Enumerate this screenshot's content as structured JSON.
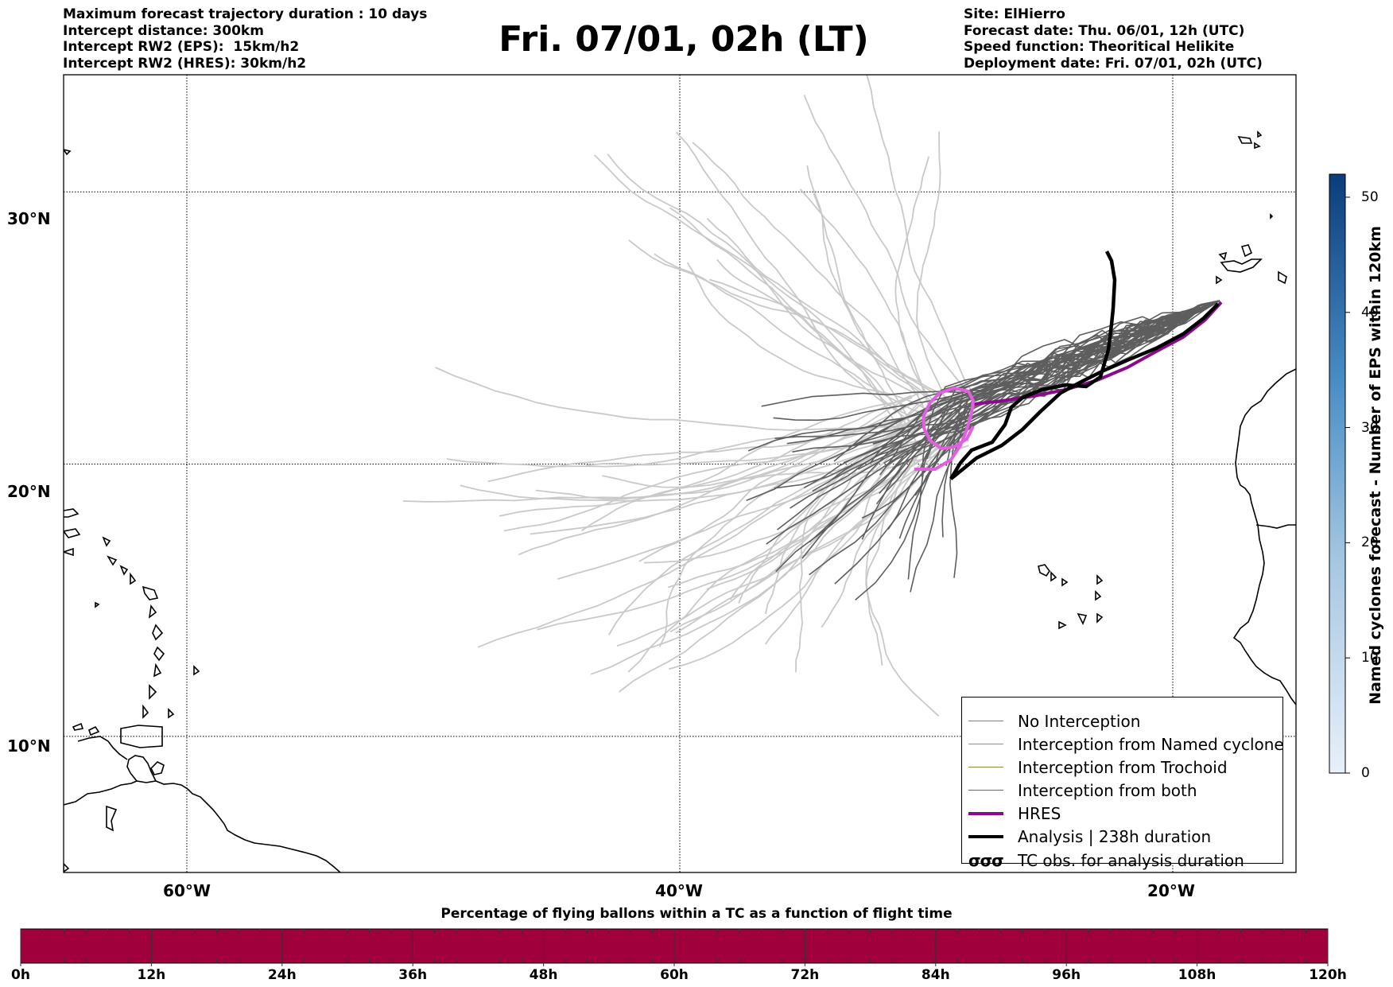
{
  "header_left": [
    "Maximum forecast trajectory duration : 10 days",
    "Intercept distance: 300km",
    "Intercept RW2 (EPS):  15km/h2",
    "Intercept RW2 (HRES): 30km/h2"
  ],
  "title": "Fri. 07/01, 02h (LT)",
  "header_right": [
    "Site: ElHierro",
    "Forecast date: Thu. 06/01, 12h (UTC)",
    "Speed function: Theoritical Helikite",
    "Deployment date: Fri. 07/01, 02h (UTC)"
  ],
  "map": {
    "lat_ticks": [
      "30°N",
      "20°N",
      "10°N"
    ],
    "lon_ticks": [
      "60°W",
      "40°W",
      "20°W"
    ],
    "lat_values": [
      30,
      20,
      10
    ],
    "lon_values": [
      -60,
      -40,
      -20
    ],
    "lon_range": [
      -65,
      -15
    ],
    "lat_range": [
      5,
      34.3
    ]
  },
  "legend": {
    "items": [
      {
        "label": "No Interception",
        "color": "#808080",
        "type": "thin"
      },
      {
        "label": "Interception from Named cyclone",
        "color": "#ff6a33",
        "type": "thin"
      },
      {
        "label": "Interception from Trochoid",
        "color": "#8c8c3a",
        "type": "thin"
      },
      {
        "label": "Interception from both",
        "color": "#3a8c3a",
        "type": "thin"
      },
      {
        "label": "HRES",
        "color": "#8b0a8b",
        "type": "thick"
      },
      {
        "label": "Analysis | 238h duration",
        "color": "#000000",
        "type": "thick"
      },
      {
        "label": "TC obs. for analysis duration",
        "color": "#000000",
        "type": "symbol",
        "symbol": "σσσ"
      }
    ]
  },
  "colorbar": {
    "label": "Named cyclones forecast - Number of EPS within 120km",
    "ticks": [
      "0",
      "10",
      "20",
      "30",
      "40",
      "50"
    ],
    "tick_values": [
      0,
      10,
      20,
      30,
      40,
      50
    ],
    "max": 52,
    "color_low": "#e6eef8",
    "color_high": "#0a3a7a"
  },
  "percentage_bar": {
    "title": "Percentage of flying ballons within a TC as a function of flight time",
    "ticks": [
      "0h",
      "12h",
      "24h",
      "36h",
      "48h",
      "60h",
      "72h",
      "84h",
      "96h",
      "108h",
      "120h"
    ],
    "color": "#a0003c"
  },
  "tracks": {
    "hres_color": "#8b0a8b",
    "analysis_color": "#000000",
    "magenta_loop_color": "#e060e0",
    "eps_color_near": "#5a5a5a",
    "eps_color_far": "#c8c8c8"
  }
}
